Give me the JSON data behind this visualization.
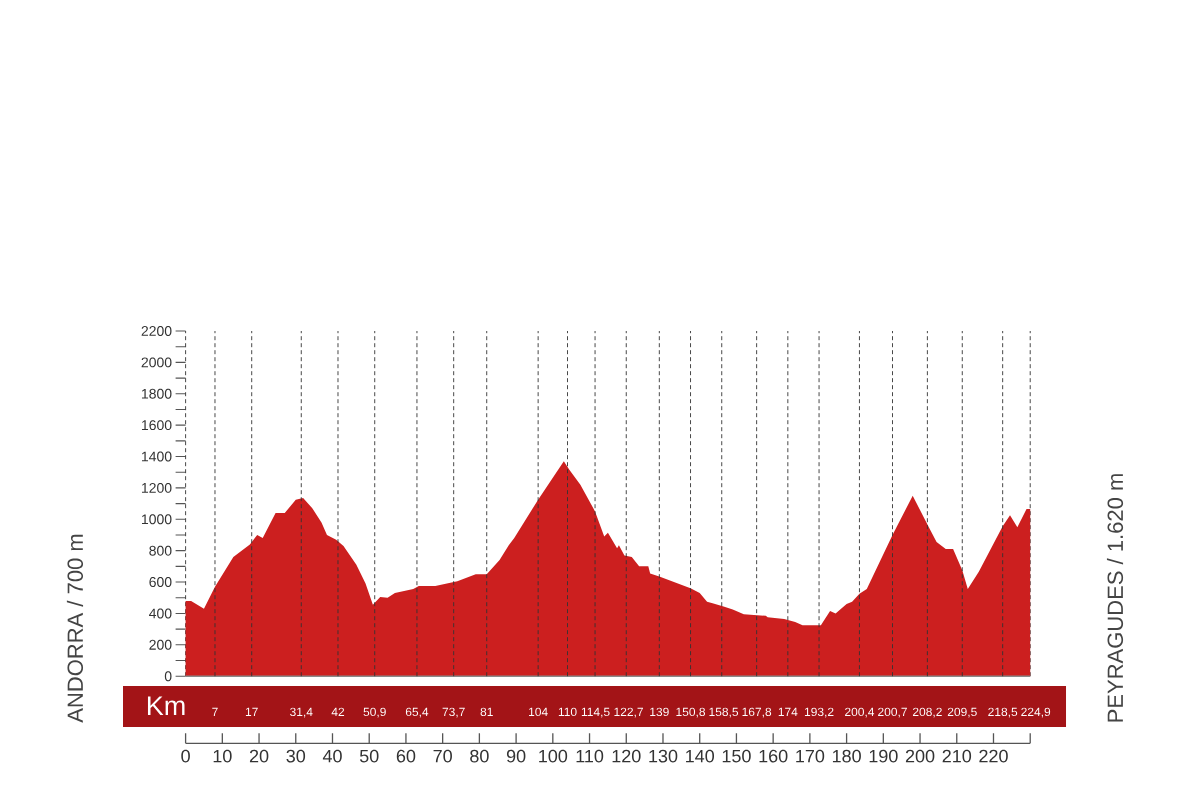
{
  "chart_data": {
    "type": "area",
    "xlabel": "Km",
    "color": "#cc1f1f",
    "x": [
      0,
      1.5,
      5,
      8,
      13,
      17.5,
      19.5,
      21,
      24.5,
      27,
      30,
      32,
      34.5,
      37,
      38.5,
      41,
      43,
      46.5,
      49,
      51,
      53,
      55,
      57,
      62,
      63.5,
      68,
      74,
      79,
      82,
      85.5,
      88,
      89.5,
      92,
      96,
      103,
      104.5,
      107.5,
      111.5,
      114,
      115,
      117.5,
      118,
      119.5,
      121.5,
      123.5,
      126,
      126.5,
      129,
      137.5,
      140,
      142,
      143.5,
      146.5,
      149,
      152,
      158,
      158.5,
      163,
      166,
      168,
      173,
      175.5,
      177,
      180,
      181.5,
      183.5,
      185.5,
      192.5,
      198,
      202.5,
      204.5,
      207,
      209,
      211.5,
      213,
      216,
      222.5,
      224.5,
      226.5,
      229,
      230
    ],
    "values": [
      480,
      480,
      430,
      570,
      760,
      840,
      900,
      880,
      1040,
      1040,
      1125,
      1135,
      1070,
      980,
      900,
      870,
      830,
      710,
      590,
      455,
      505,
      500,
      530,
      555,
      575,
      575,
      605,
      650,
      650,
      740,
      835,
      880,
      975,
      1125,
      1370,
      1315,
      1220,
      1050,
      890,
      915,
      815,
      835,
      770,
      760,
      700,
      700,
      655,
      635,
      560,
      530,
      475,
      465,
      445,
      425,
      395,
      385,
      375,
      365,
      345,
      325,
      325,
      415,
      400,
      460,
      475,
      525,
      555,
      900,
      1150,
      945,
      855,
      810,
      810,
      675,
      555,
      665,
      955,
      1025,
      950,
      1065,
      1065
    ],
    "xlim": [
      0,
      230
    ],
    "xticks": [
      0,
      10,
      20,
      30,
      40,
      50,
      60,
      70,
      80,
      90,
      100,
      110,
      120,
      130,
      140,
      150,
      160,
      170,
      180,
      190,
      200,
      210,
      220,
      {
        "value": 230,
        "label": null
      }
    ],
    "ylim": [
      0,
      2200
    ],
    "yticks": [
      0,
      {
        "value": 100,
        "label": null
      },
      200,
      {
        "value": 300,
        "label": null
      },
      400,
      {
        "value": 500,
        "label": null
      },
      600,
      {
        "value": 700,
        "label": null
      },
      800,
      {
        "value": 900,
        "label": null
      },
      1000,
      {
        "value": 1100,
        "label": null
      },
      1200,
      {
        "value": 1300,
        "label": null
      },
      1400,
      {
        "value": 1500,
        "label": null
      },
      1600,
      {
        "value": 1700,
        "label": null
      },
      1800,
      {
        "value": 1900,
        "label": null
      },
      2000,
      {
        "value": 2100,
        "label": null
      },
      2200
    ],
    "ref_lines": [
      {
        "axis": "x",
        "value": 8,
        "color": "#333333",
        "line_style": "dashed"
      },
      {
        "axis": "x",
        "value": 18,
        "color": "#333333",
        "line_style": "dashed"
      },
      {
        "axis": "x",
        "value": 31.5,
        "color": "#333333",
        "line_style": "dashed"
      },
      {
        "axis": "x",
        "value": 41.5,
        "color": "#333333",
        "line_style": "dashed"
      },
      {
        "axis": "x",
        "value": 51.5,
        "color": "#333333",
        "line_style": "dashed"
      },
      {
        "axis": "x",
        "value": 63,
        "color": "#333333",
        "line_style": "dashed"
      },
      {
        "axis": "x",
        "value": 73,
        "color": "#333333",
        "line_style": "dashed"
      },
      {
        "axis": "x",
        "value": 82,
        "color": "#333333",
        "line_style": "dashed"
      },
      {
        "axis": "x",
        "value": 96,
        "color": "#333333",
        "line_style": "dashed"
      },
      {
        "axis": "x",
        "value": 104,
        "color": "#333333",
        "line_style": "dashed"
      },
      {
        "axis": "x",
        "value": 111.5,
        "color": "#333333",
        "line_style": "dashed"
      },
      {
        "axis": "x",
        "value": 120,
        "color": "#333333",
        "line_style": "dashed"
      },
      {
        "axis": "x",
        "value": 129,
        "color": "#333333",
        "line_style": "dashed"
      },
      {
        "axis": "x",
        "value": 137.5,
        "color": "#333333",
        "line_style": "dashed"
      },
      {
        "axis": "x",
        "value": 146,
        "color": "#333333",
        "line_style": "dashed"
      },
      {
        "axis": "x",
        "value": 155.5,
        "color": "#333333",
        "line_style": "dashed"
      },
      {
        "axis": "x",
        "value": 164,
        "color": "#333333",
        "line_style": "dashed"
      },
      {
        "axis": "x",
        "value": 172.5,
        "color": "#333333",
        "line_style": "dashed"
      },
      {
        "axis": "x",
        "value": 183.5,
        "color": "#333333",
        "line_style": "dashed"
      },
      {
        "axis": "x",
        "value": 192.5,
        "color": "#333333",
        "line_style": "dashed"
      },
      {
        "axis": "x",
        "value": 202,
        "color": "#333333",
        "line_style": "dashed"
      },
      {
        "axis": "x",
        "value": 211.5,
        "color": "#333333",
        "line_style": "dashed"
      },
      {
        "axis": "x",
        "value": 222.5,
        "color": "#333333",
        "line_style": "dashed"
      }
    ],
    "annotations": [
      "ANDORRA / 700 m",
      "PEYRAGUDES / 1.620 m",
      "7",
      "17",
      "31,4",
      "42",
      "50,9",
      "65,4",
      "73,7",
      "81",
      "104",
      "110",
      "114,5",
      "122,7",
      "139",
      "150,8",
      "158,5",
      "167,8",
      "174",
      "193,2",
      "200,4",
      "200,7",
      "208,2",
      "209,5",
      "218,5",
      "224,9"
    ]
  }
}
